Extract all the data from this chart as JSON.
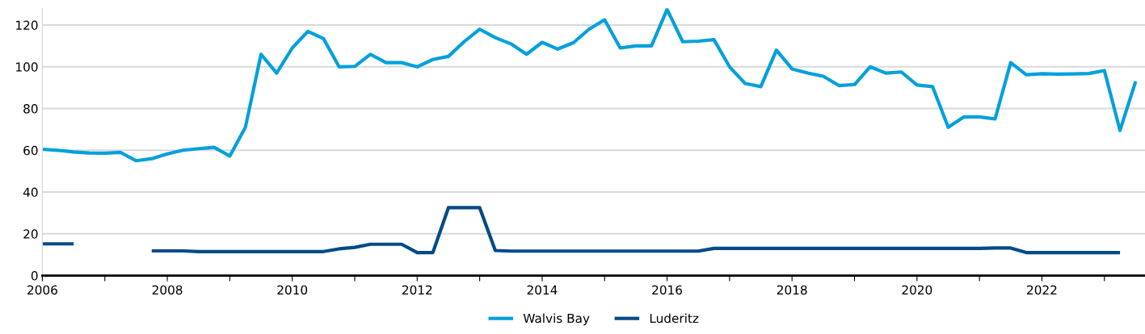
{
  "chart_data": {
    "type": "line",
    "x": [
      2006,
      2006.25,
      2006.5,
      2006.75,
      2007,
      2007.25,
      2007.5,
      2007.75,
      2008,
      2008.25,
      2008.5,
      2008.75,
      2009,
      2009.25,
      2009.5,
      2009.75,
      2010,
      2010.25,
      2010.5,
      2010.75,
      2011,
      2011.25,
      2011.5,
      2011.75,
      2012,
      2012.25,
      2012.5,
      2012.75,
      2013,
      2013.25,
      2013.5,
      2013.75,
      2014,
      2014.25,
      2014.5,
      2014.75,
      2015,
      2015.25,
      2015.5,
      2015.75,
      2016,
      2016.25,
      2016.5,
      2016.75,
      2017,
      2017.25,
      2017.5,
      2017.75,
      2018,
      2018.25,
      2018.5,
      2018.75,
      2019,
      2019.25,
      2019.5,
      2019.75,
      2020,
      2020.25,
      2020.5,
      2020.75,
      2021,
      2021.25,
      2021.5,
      2021.75,
      2022,
      2022.25,
      2022.5,
      2022.75,
      2023,
      2023.25,
      2023.5
    ],
    "series": [
      {
        "name": "Walvis Bay",
        "color": "#00a0dc",
        "values": [
          60.5,
          60,
          59.2,
          58.7,
          58.6,
          59,
          55,
          56,
          58.3,
          60,
          60.8,
          61.4,
          57.2,
          71,
          106,
          97,
          109,
          117,
          113.5,
          100,
          100.2,
          106,
          102,
          102,
          100,
          103.5,
          105,
          112,
          118,
          114,
          111,
          106,
          111.7,
          108.5,
          111.5,
          118,
          122.5,
          109,
          110,
          110,
          127.5,
          112,
          112.3,
          113,
          100,
          92,
          90.5,
          108,
          99,
          97,
          95.5,
          91,
          91.5,
          100,
          97,
          97.5,
          91.3,
          90.5,
          71,
          76,
          76,
          75,
          102,
          96.2,
          96.7,
          96.5,
          96.6,
          96.8,
          98.2,
          69.5,
          93
        ]
      },
      {
        "name": "Luderitz",
        "color": "#004b87",
        "values": [
          15.2,
          15.2,
          15.2,
          null,
          null,
          null,
          null,
          11.8,
          11.8,
          11.8,
          11.5,
          11.5,
          11.5,
          11.5,
          11.5,
          11.5,
          11.5,
          11.5,
          11.5,
          12.8,
          13.5,
          15,
          15,
          15,
          11,
          11,
          32.5,
          32.5,
          32.5,
          12,
          11.7,
          11.7,
          11.7,
          11.7,
          11.7,
          11.7,
          11.7,
          11.7,
          11.7,
          11.7,
          11.7,
          11.7,
          11.7,
          13,
          13,
          13,
          13,
          13,
          13,
          13,
          13,
          13,
          13,
          13,
          13,
          13,
          13,
          13,
          13,
          13,
          13,
          13.2,
          13.2,
          11,
          11,
          11,
          11,
          11,
          11,
          11,
          null
        ]
      }
    ],
    "xlim": [
      2006,
      2023.65
    ],
    "xticks": [
      2006,
      {
        "value": 2007,
        "label": null
      },
      2008,
      {
        "value": 2009,
        "label": null
      },
      2010,
      {
        "value": 2011,
        "label": null
      },
      2012,
      {
        "value": 2013,
        "label": null
      },
      2014,
      {
        "value": 2015,
        "label": null
      },
      2016,
      {
        "value": 2017,
        "label": null
      },
      2018,
      {
        "value": 2019,
        "label": null
      },
      2020,
      {
        "value": 2021,
        "label": null
      },
      2022,
      {
        "value": 2023,
        "label": null
      }
    ],
    "ylim": [
      0,
      128
    ],
    "yticks": [
      0,
      20,
      40,
      60,
      80,
      100,
      120
    ],
    "grid": "y",
    "legend": "bottom",
    "line_style": "solid",
    "marker": "none"
  }
}
